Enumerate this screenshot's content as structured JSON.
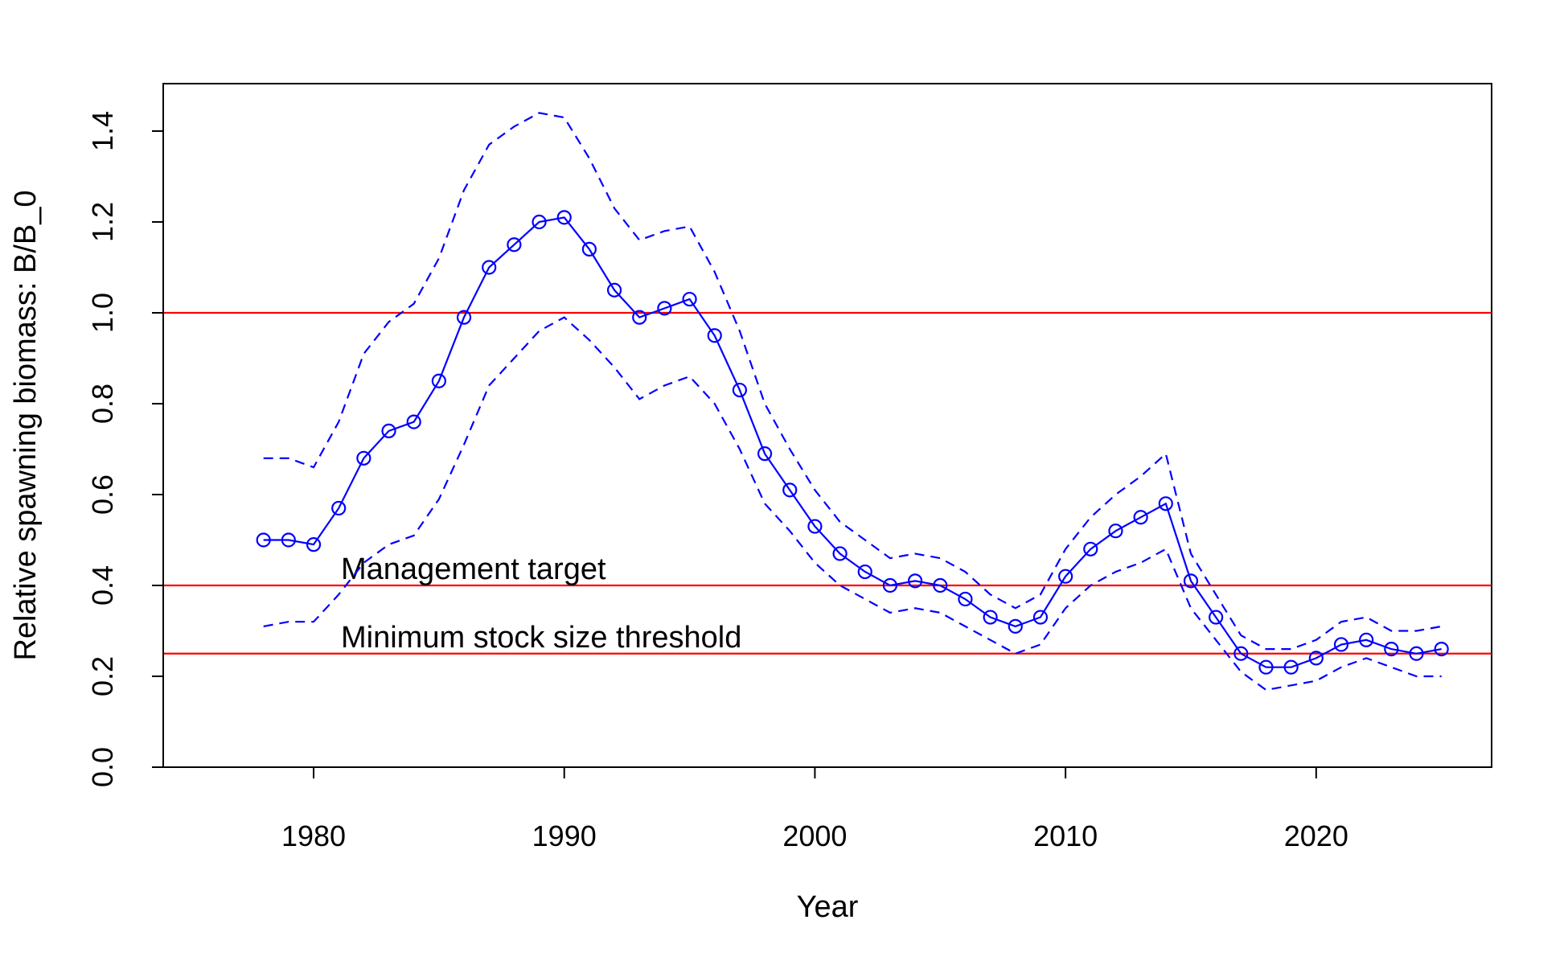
{
  "chart_data": {
    "type": "line",
    "title": "",
    "xlabel": "Year",
    "ylabel": "Relative spawning biomass: B/B_0",
    "xlim": [
      1974,
      2027
    ],
    "ylim": [
      0,
      1.5
    ],
    "x_ticks": [
      "1980",
      "1990",
      "2000",
      "2010",
      "2020"
    ],
    "y_ticks": [
      "0.0",
      "0.2",
      "0.4",
      "0.6",
      "0.8",
      "1.0",
      "1.2",
      "1.4"
    ],
    "grid": false,
    "x": [
      1978,
      1979,
      1980,
      1981,
      1982,
      1983,
      1984,
      1985,
      1986,
      1987,
      1988,
      1989,
      1990,
      1991,
      1992,
      1993,
      1994,
      1995,
      1996,
      1997,
      1998,
      1999,
      2000,
      2001,
      2002,
      2003,
      2004,
      2005,
      2006,
      2007,
      2008,
      2009,
      2010,
      2011,
      2012,
      2013,
      2014,
      2015,
      2016,
      2017,
      2018,
      2019,
      2020,
      2021,
      2022,
      2023,
      2024,
      2025
    ],
    "series": [
      {
        "values": [
          0.5,
          0.5,
          0.49,
          0.57,
          0.68,
          0.74,
          0.76,
          0.85,
          0.99,
          1.1,
          1.15,
          1.2,
          1.21,
          1.14,
          1.05,
          0.99,
          1.01,
          1.03,
          0.95,
          0.83,
          0.69,
          0.61,
          0.53,
          0.47,
          0.43,
          0.4,
          0.41,
          0.4,
          0.37,
          0.33,
          0.31,
          0.33,
          0.42,
          0.48,
          0.52,
          0.55,
          0.58,
          0.41,
          0.33,
          0.25,
          0.22,
          0.22,
          0.24,
          0.27,
          0.28,
          0.26,
          0.25,
          0.26
        ],
        "color": "#0000ff",
        "style": "solid-with-circles"
      },
      {
        "values": [
          0.68,
          0.68,
          0.66,
          0.76,
          0.91,
          0.98,
          1.02,
          1.12,
          1.27,
          1.37,
          1.41,
          1.44,
          1.43,
          1.34,
          1.23,
          1.16,
          1.18,
          1.19,
          1.09,
          0.96,
          0.8,
          0.7,
          0.61,
          0.54,
          0.5,
          0.46,
          0.47,
          0.46,
          0.43,
          0.38,
          0.35,
          0.38,
          0.48,
          0.55,
          0.6,
          0.64,
          0.69,
          0.47,
          0.38,
          0.29,
          0.26,
          0.26,
          0.28,
          0.32,
          0.33,
          0.3,
          0.3,
          0.31
        ],
        "color": "#0000ff",
        "style": "dashed"
      },
      {
        "values": [
          0.31,
          0.32,
          0.32,
          0.38,
          0.45,
          0.49,
          0.51,
          0.59,
          0.71,
          0.84,
          0.9,
          0.96,
          0.99,
          0.94,
          0.88,
          0.81,
          0.84,
          0.86,
          0.8,
          0.7,
          0.58,
          0.52,
          0.45,
          0.4,
          0.37,
          0.34,
          0.35,
          0.34,
          0.31,
          0.28,
          0.25,
          0.27,
          0.35,
          0.4,
          0.43,
          0.45,
          0.48,
          0.35,
          0.28,
          0.21,
          0.17,
          0.18,
          0.19,
          0.22,
          0.24,
          0.22,
          0.2,
          0.2
        ],
        "color": "#0000ff",
        "style": "dashed"
      }
    ],
    "reference_lines": [
      {
        "y": 1.0,
        "label": "",
        "color": "#ff0000"
      },
      {
        "y": 0.4,
        "label": "Management target",
        "color": "#ff0000"
      },
      {
        "y": 0.25,
        "label": "Minimum stock size threshold",
        "color": "#ff0000"
      }
    ]
  }
}
